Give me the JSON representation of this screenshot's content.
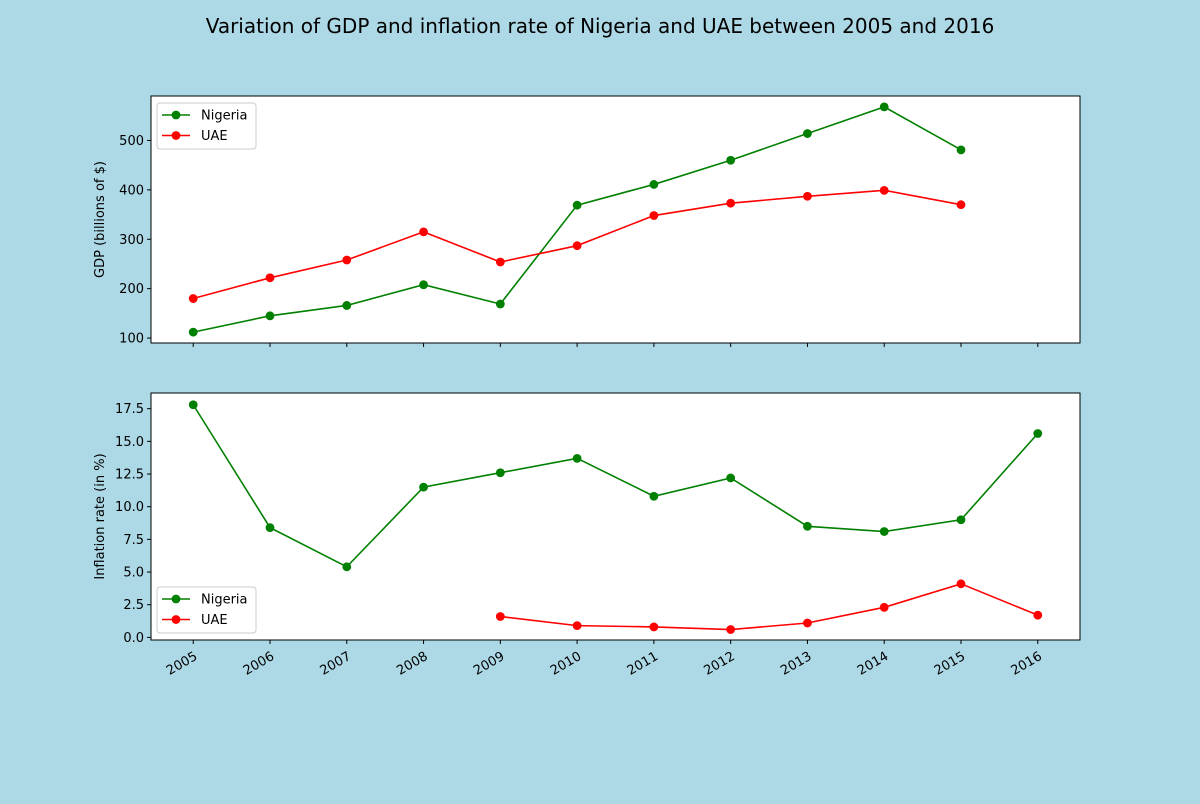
{
  "figure": {
    "title": "Variation of GDP and inflation rate of Nigeria and UAE between 2005 and 2016",
    "background": "#add8e6"
  },
  "chart_data": [
    {
      "type": "line",
      "title": "",
      "xlabel": "",
      "ylabel": "GDP (billions of $)",
      "x": [
        2005,
        2006,
        2007,
        2008,
        2009,
        2010,
        2011,
        2012,
        2013,
        2014,
        2015,
        2016
      ],
      "x_tick_labels": [
        "2005",
        "2006",
        "2007",
        "2008",
        "2009",
        "2010",
        "2011",
        "2012",
        "2013",
        "2014",
        "2015",
        "2016"
      ],
      "x_tick_labels_visible": false,
      "y_ticks": [
        100,
        200,
        300,
        400,
        500
      ],
      "y_tick_labels": [
        "100",
        "200",
        "300",
        "400",
        "500"
      ],
      "ylim": [
        90,
        590
      ],
      "grid": false,
      "legend": "upper-left",
      "series": [
        {
          "name": "Nigeria",
          "color": "#008000",
          "marker": "circle",
          "values": [
            112,
            145,
            166,
            208,
            169,
            369,
            411,
            460,
            514,
            568,
            481,
            null
          ]
        },
        {
          "name": "UAE",
          "color": "#ff0000",
          "marker": "circle",
          "values": [
            180,
            222,
            258,
            315,
            254,
            287,
            348,
            373,
            387,
            399,
            370,
            null
          ]
        }
      ]
    },
    {
      "type": "line",
      "title": "",
      "xlabel": "",
      "ylabel": "Inflation rate (in %)",
      "x": [
        2005,
        2006,
        2007,
        2008,
        2009,
        2010,
        2011,
        2012,
        2013,
        2014,
        2015,
        2016
      ],
      "x_tick_labels": [
        "2005",
        "2006",
        "2007",
        "2008",
        "2009",
        "2010",
        "2011",
        "2012",
        "2013",
        "2014",
        "2015",
        "2016"
      ],
      "x_tick_labels_visible": true,
      "x_tick_rotation_deg": 30,
      "y_ticks": [
        0,
        2.5,
        5,
        7.5,
        10,
        12.5,
        15,
        17.5
      ],
      "y_tick_labels": [
        "0.0",
        "2.5",
        "5.0",
        "7.5",
        "10.0",
        "12.5",
        "15.0",
        "17.5"
      ],
      "ylim": [
        -0.2,
        18.7
      ],
      "grid": false,
      "legend": "lower-left",
      "series": [
        {
          "name": "Nigeria",
          "color": "#008000",
          "marker": "circle",
          "values": [
            17.8,
            8.4,
            5.4,
            11.5,
            12.6,
            13.7,
            10.8,
            12.2,
            8.5,
            8.1,
            9.0,
            15.6
          ]
        },
        {
          "name": "UAE",
          "color": "#ff0000",
          "marker": "circle",
          "values": [
            null,
            null,
            null,
            null,
            1.6,
            0.9,
            0.8,
            0.6,
            1.1,
            2.3,
            4.1,
            1.7
          ]
        }
      ]
    }
  ]
}
